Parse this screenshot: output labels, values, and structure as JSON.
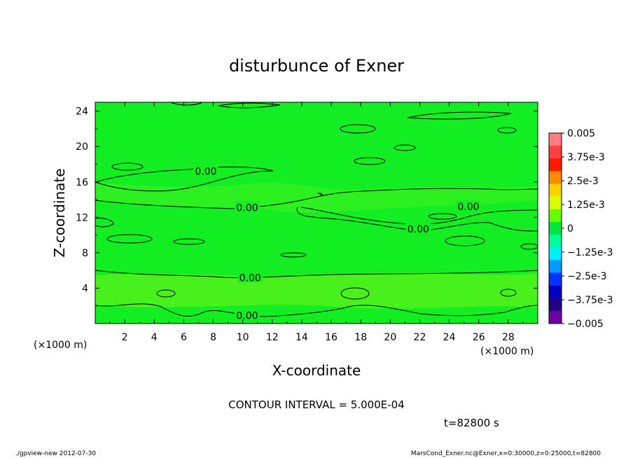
{
  "chart_data": {
    "type": "heatmap",
    "title": "disturbunce of Exner",
    "xlabel": "X-coordinate",
    "ylabel": "Z-coordinate",
    "x_unit": "(×1000 m)",
    "y_unit": "(×1000 m)",
    "xlim": [
      0,
      30
    ],
    "ylim": [
      0,
      25
    ],
    "x_ticks": [
      2,
      4,
      6,
      8,
      10,
      12,
      14,
      16,
      18,
      20,
      22,
      24,
      26,
      28
    ],
    "y_ticks": [
      4,
      8,
      12,
      16,
      20,
      24
    ],
    "contour_labels": [
      {
        "text": "0.00",
        "x": 7.5,
        "z": 17.2
      },
      {
        "text": "0.00",
        "x": 10.3,
        "z": 13.1
      },
      {
        "text": "0.00",
        "x": 25.3,
        "z": 13.2
      },
      {
        "text": "0.00",
        "x": 21.9,
        "z": 10.7
      },
      {
        "text": "0.00",
        "x": 10.5,
        "z": 5.2
      },
      {
        "text": "0.00",
        "x": 10.3,
        "z": 0.9
      }
    ],
    "colorbar": {
      "labels": [
        "0.005",
        "3.75e-3",
        "2.5e-3",
        "1.25e-3",
        "0",
        "−1.25e-3",
        "−2.5e-3",
        "−3.75e-3",
        "−0.005"
      ],
      "colors": [
        "#ff7f7f",
        "#ff4040",
        "#ff1a00",
        "#ff8c00",
        "#ffd200",
        "#d6ff00",
        "#66ff00",
        "#00e63c",
        "#00ff9a",
        "#00f0ff",
        "#0099ff",
        "#0033ff",
        "#0000c0",
        "#200080",
        "#7000a0"
      ]
    },
    "field_colors": {
      "main": "#12ee22",
      "near_zero_positive": "#2df020",
      "lower_band": "#48f01c"
    }
  },
  "annotations": {
    "contour_interval": "CONTOUR INTERVAL = 5.000E-04",
    "time": "t=82800 s",
    "footer_left": "./gpview-new 2012-07-30",
    "footer_right": "MarsCond_Exner.nc@Exner,x=0:30000,z=0:25000,t=82800"
  }
}
